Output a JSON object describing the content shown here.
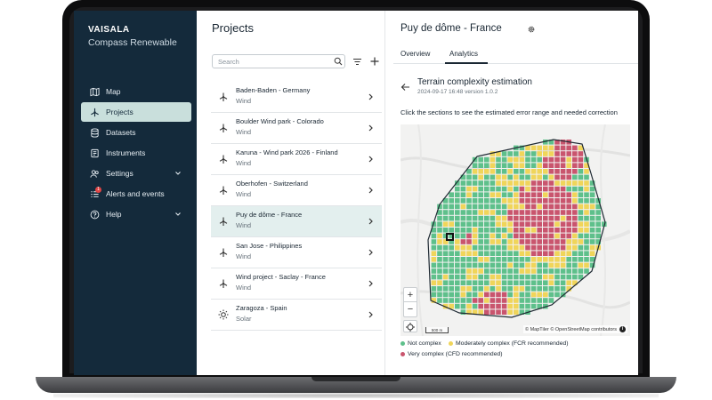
{
  "colors": {
    "sidebar_bg": "#142a3b",
    "active_item": "#c9dfdc",
    "not_complex": "#5ec08b",
    "moderately_complex": "#f0d55a",
    "very_complex": "#c9556e"
  },
  "sidebar": {
    "brand": "VAISALA",
    "product": "Compass Renewable",
    "items": [
      {
        "label": "Map",
        "icon": "map-icon"
      },
      {
        "label": "Projects",
        "icon": "projects-icon",
        "active": true
      },
      {
        "label": "Datasets",
        "icon": "database-icon"
      },
      {
        "label": "Instruments",
        "icon": "instruments-icon"
      },
      {
        "label": "Settings",
        "icon": "users-icon",
        "expandable": true
      },
      {
        "label": "Alerts and events",
        "icon": "alerts-icon",
        "badge": "1"
      },
      {
        "label": "Help",
        "icon": "help-icon",
        "expandable": true
      }
    ]
  },
  "projects": {
    "title": "Projects",
    "search_placeholder": "Search",
    "items": [
      {
        "name": "Baden-Baden - Germany",
        "type": "Wind",
        "icon": "wind-turbine-icon"
      },
      {
        "name": "Boulder Wind park - Colorado",
        "type": "Wind",
        "icon": "wind-turbine-icon"
      },
      {
        "name": "Karuna - Wind park 2026 - Finland",
        "type": "Wind",
        "icon": "wind-turbine-icon"
      },
      {
        "name": "Oberhofen - Switzerland",
        "type": "Wind",
        "icon": "wind-turbine-icon"
      },
      {
        "name": "Puy de dôme - France",
        "type": "Wind",
        "icon": "wind-turbine-icon",
        "active": true
      },
      {
        "name": "San Jose - Philippines",
        "type": "Wind",
        "icon": "wind-turbine-icon"
      },
      {
        "name": "Wind project - Saclay - France",
        "type": "Wind",
        "icon": "wind-turbine-icon"
      },
      {
        "name": "Zaragoza - Spain",
        "type": "Solar",
        "icon": "sun-icon"
      }
    ]
  },
  "detail": {
    "title": "Puy de dôme - France",
    "tabs": [
      {
        "label": "Overview"
      },
      {
        "label": "Analytics",
        "active": true
      }
    ],
    "section_title": "Terrain complexity estimation",
    "section_subtitle": "2024-09-17 16:48 version 1.0.2",
    "instruction": "Click the sections to see the estimated error range and needed correction",
    "map": {
      "zoom_in": "+",
      "zoom_out": "−",
      "scale": "500 m",
      "attribution": "© MapTiler © OpenStreetMap contributors"
    },
    "legend": [
      {
        "label": "Not complex",
        "color": "#5ec08b"
      },
      {
        "label": "Moderately complex (FCR recommended)",
        "color": "#f0d55a"
      },
      {
        "label": "Very complex (CFD recommended)",
        "color": "#c9556e"
      }
    ]
  }
}
